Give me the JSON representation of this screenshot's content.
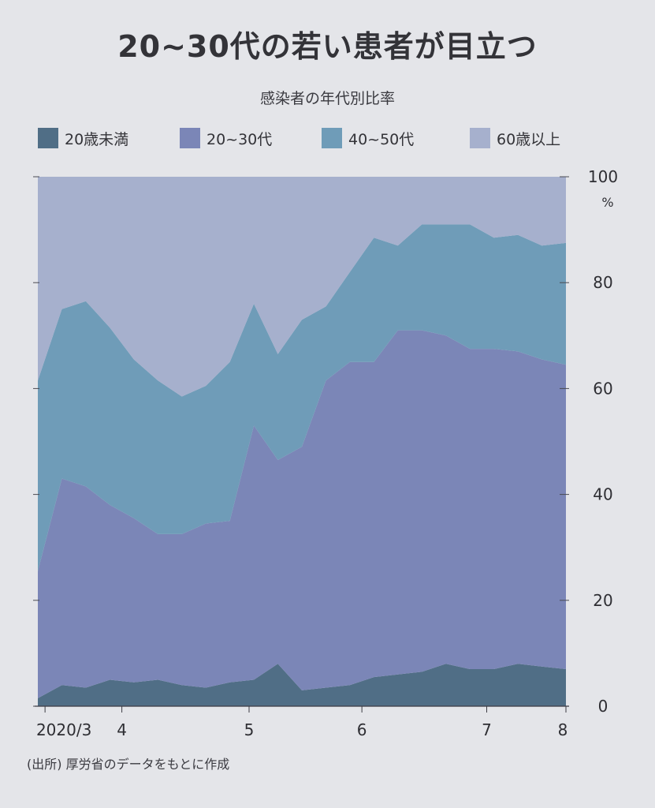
{
  "title": "20~30代の若い患者が目立つ",
  "subtitle": "感染者の年代別比率",
  "source": "(出所) 厚労省のデータをもとに作成",
  "chart_data": {
    "type": "area",
    "stacked": true,
    "title": "20~30代の若い患者が目立つ",
    "subtitle": "感染者の年代別比率",
    "y_unit": "%",
    "ylim": [
      0,
      100
    ],
    "y_ticks": [
      0,
      20,
      40,
      60,
      80,
      100
    ],
    "x_start": 0,
    "x_end": 22,
    "x_ticks": [
      {
        "label": "2020/3",
        "x": 0.3
      },
      {
        "label": "4",
        "x": 3.5
      },
      {
        "label": "5",
        "x": 8.8
      },
      {
        "label": "6",
        "x": 13.5
      },
      {
        "label": "7",
        "x": 18.7
      },
      {
        "label": "8",
        "x": 22
      }
    ],
    "legend_position": "top",
    "x": [
      0,
      1,
      2,
      3,
      4,
      5,
      6,
      7,
      8,
      9,
      10,
      11,
      12,
      13,
      14,
      15,
      16,
      17,
      18,
      19,
      20,
      21,
      22
    ],
    "series": [
      {
        "name": "20歳未満",
        "color": "#506e86",
        "values": [
          1.5,
          4,
          3.5,
          5,
          4.5,
          5,
          4,
          3.5,
          4.5,
          5,
          8,
          3,
          3.5,
          4,
          5.5,
          6,
          6.5,
          8,
          7,
          7,
          8,
          7.5,
          7
        ]
      },
      {
        "name": "20~30代",
        "color": "#7b86b7",
        "values": [
          24,
          39,
          38,
          33,
          31,
          27.5,
          28.5,
          31,
          30.5,
          48,
          38.5,
          46,
          58,
          61,
          59.5,
          65,
          64.5,
          62,
          60.5,
          60.5,
          59,
          58,
          57.5
        ]
      },
      {
        "name": "40~50代",
        "color": "#6f9cb8",
        "values": [
          36,
          32,
          35,
          33.5,
          30,
          29,
          26,
          26,
          30,
          23,
          20,
          24,
          14,
          17,
          23.5,
          16,
          20,
          21,
          23.5,
          21,
          22,
          21.5,
          23
        ]
      },
      {
        "name": "60歳以上",
        "color": "#a6b0cd",
        "values": [
          38.5,
          25,
          23.5,
          28.5,
          34.5,
          38.5,
          41.5,
          39.5,
          35,
          24,
          33.5,
          27,
          24.5,
          18,
          11.5,
          13,
          9,
          9,
          9,
          11.5,
          11,
          13,
          12.5
        ]
      }
    ]
  }
}
